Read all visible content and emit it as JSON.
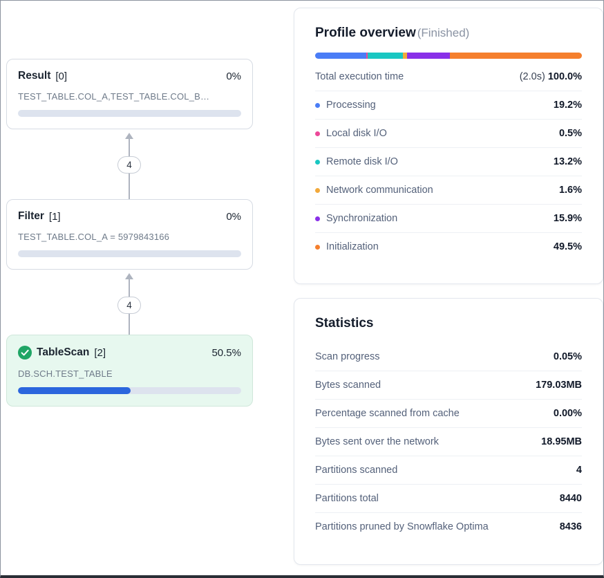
{
  "dag": {
    "nodes": [
      {
        "name": "Result",
        "index": "[0]",
        "pct": "0%",
        "detail": "TEST_TABLE.COL_A,TEST_TABLE.COL_B…",
        "progress": 0
      },
      {
        "name": "Filter",
        "index": "[1]",
        "pct": "0%",
        "detail": "TEST_TABLE.COL_A = 5979843166",
        "progress": 0
      },
      {
        "name": "TableScan",
        "index": "[2]",
        "pct": "50.5%",
        "detail": "DB.SCH.TEST_TABLE",
        "progress": 50.5
      }
    ],
    "edges": [
      {
        "label": "4"
      },
      {
        "label": "4"
      }
    ]
  },
  "profile": {
    "title": "Profile overview",
    "status": "(Finished)",
    "total": {
      "label": "Total execution time",
      "time": "(2.0s)",
      "percent": "100.0%"
    },
    "legend": [
      {
        "label": "Processing",
        "value": "19.2%",
        "color": "#4a7df6"
      },
      {
        "label": "Local disk I/O",
        "value": "0.5%",
        "color": "#ec4899"
      },
      {
        "label": "Remote disk I/O",
        "value": "13.2%",
        "color": "#19c7c2"
      },
      {
        "label": "Network communication",
        "value": "1.6%",
        "color": "#f2a93b"
      },
      {
        "label": "Synchronization",
        "value": "15.9%",
        "color": "#8930e8"
      },
      {
        "label": "Initialization",
        "value": "49.5%",
        "color": "#f57f2d"
      }
    ]
  },
  "statistics": {
    "title": "Statistics",
    "rows": [
      {
        "label": "Scan progress",
        "value": "0.05%"
      },
      {
        "label": "Bytes scanned",
        "value": "179.03MB"
      },
      {
        "label": "Percentage scanned from cache",
        "value": "0.00%"
      },
      {
        "label": "Bytes sent over the network",
        "value": "18.95MB"
      },
      {
        "label": "Partitions scanned",
        "value": "4"
      },
      {
        "label": "Partitions total",
        "value": "8440"
      },
      {
        "label": "Partitions pruned by Snowflake Optima",
        "value": "8436"
      }
    ]
  },
  "colors": {
    "progress_fill": "#2b66dd",
    "active_node_bg": "#e7f8ef",
    "check_green": "#1fa565"
  }
}
